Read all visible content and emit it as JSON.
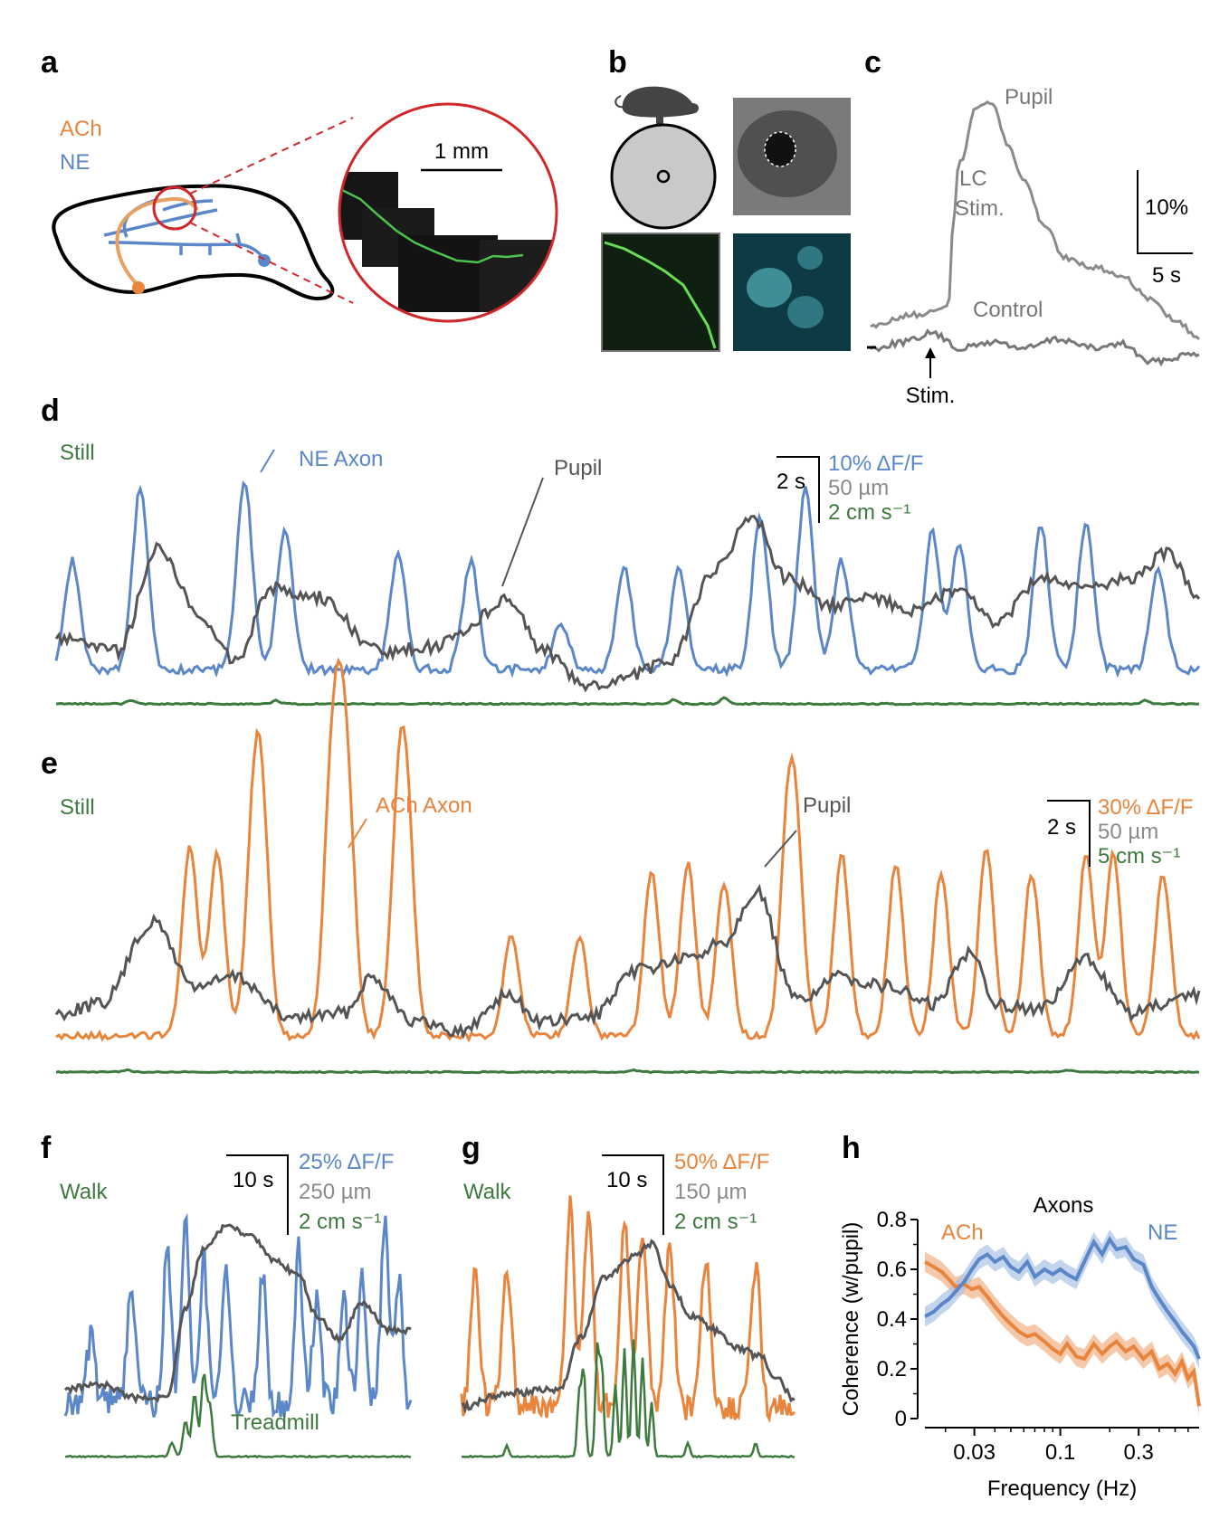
{
  "colors": {
    "ach": "#e8843c",
    "ne": "#5b87c9",
    "pupil": "#555555",
    "pupil_light": "#8a8a8a",
    "treadmill": "#3d7a3d",
    "axon_green": "#4cc44c",
    "brain_ring": "#d0282a"
  },
  "panels": {
    "a": {
      "label": "a",
      "legend_ach": "ACh",
      "legend_ne": "NE",
      "scale_bar": "1 mm"
    },
    "b": {
      "label": "b",
      "icons": [
        "mouse-icon",
        "treadmill-wheel",
        "eye-photo",
        "axon-photo",
        "cells-photo"
      ]
    },
    "c": {
      "label": "c",
      "pupil_label": "Pupil",
      "lc_label_1": "LC",
      "lc_label_2": "Stim.",
      "control_label": "Control",
      "stim_label": "Stim.",
      "scale_y": "10%",
      "scale_x": "5 s"
    },
    "d": {
      "label": "d",
      "state": "Still",
      "axon_label": "NE Axon",
      "pupil_label": "Pupil",
      "scale_time": "2 s",
      "scale_f": "10% ΔF/F",
      "scale_pupil": "50 µm",
      "scale_speed": "2 cm s⁻¹"
    },
    "e": {
      "label": "e",
      "state": "Still",
      "axon_label": "ACh Axon",
      "pupil_label": "Pupil",
      "scale_time": "2 s",
      "scale_f": "30% ΔF/F",
      "scale_pupil": "50 µm",
      "scale_speed": "5 cm s⁻¹"
    },
    "f": {
      "label": "f",
      "state": "Walk",
      "treadmill_label": "Treadmill",
      "scale_time": "10 s",
      "scale_f": "25% ΔF/F",
      "scale_pupil": "250 µm",
      "scale_speed": "2 cm s⁻¹"
    },
    "g": {
      "label": "g",
      "state": "Walk",
      "scale_time": "10 s",
      "scale_f": "50% ΔF/F",
      "scale_pupil": "150 µm",
      "scale_speed": "2 cm s⁻¹"
    },
    "h": {
      "label": "h",
      "title": "Axons",
      "legend_ach": "ACh",
      "legend_ne": "NE"
    }
  },
  "chart_data": [
    {
      "panel": "h",
      "type": "line",
      "title": "Axons",
      "xlabel": "Frequency (Hz)",
      "ylabel": "Coherence (w/pupil)",
      "xscale": "log",
      "xlim": [
        0.015,
        0.7
      ],
      "ylim": [
        0,
        0.8
      ],
      "xticks": [
        0.03,
        0.1,
        0.3
      ],
      "xtick_labels": [
        "0.03",
        "0.1",
        "0.3"
      ],
      "yticks": [
        0,
        0.2,
        0.4,
        0.6,
        0.8
      ],
      "ytick_labels": [
        "0",
        "0.2",
        "0.4",
        "0.6",
        "0.8"
      ],
      "series": [
        {
          "name": "ACh",
          "x": [
            0.015,
            0.017,
            0.019,
            0.021,
            0.023,
            0.026,
            0.029,
            0.032,
            0.036,
            0.04,
            0.045,
            0.05,
            0.056,
            0.063,
            0.07,
            0.08,
            0.09,
            0.1,
            0.11,
            0.125,
            0.14,
            0.16,
            0.18,
            0.2,
            0.22,
            0.25,
            0.28,
            0.32,
            0.36,
            0.4,
            0.45,
            0.5,
            0.55,
            0.6,
            0.65,
            0.7
          ],
          "y": [
            0.63,
            0.61,
            0.59,
            0.56,
            0.53,
            0.54,
            0.52,
            0.53,
            0.49,
            0.45,
            0.41,
            0.38,
            0.35,
            0.33,
            0.34,
            0.31,
            0.28,
            0.26,
            0.3,
            0.25,
            0.24,
            0.3,
            0.26,
            0.29,
            0.31,
            0.27,
            0.29,
            0.24,
            0.27,
            0.2,
            0.22,
            0.18,
            0.23,
            0.16,
            0.19,
            0.05
          ],
          "band": 0.04
        },
        {
          "name": "NE",
          "x": [
            0.015,
            0.017,
            0.019,
            0.021,
            0.023,
            0.026,
            0.029,
            0.032,
            0.036,
            0.04,
            0.045,
            0.05,
            0.056,
            0.063,
            0.07,
            0.08,
            0.09,
            0.1,
            0.11,
            0.125,
            0.14,
            0.16,
            0.18,
            0.2,
            0.22,
            0.25,
            0.28,
            0.32,
            0.36,
            0.4,
            0.45,
            0.5,
            0.55,
            0.6,
            0.65,
            0.7
          ],
          "y": [
            0.41,
            0.43,
            0.46,
            0.48,
            0.51,
            0.55,
            0.6,
            0.64,
            0.66,
            0.63,
            0.65,
            0.61,
            0.59,
            0.63,
            0.57,
            0.6,
            0.58,
            0.6,
            0.58,
            0.56,
            0.63,
            0.71,
            0.66,
            0.72,
            0.68,
            0.69,
            0.64,
            0.62,
            0.53,
            0.48,
            0.43,
            0.39,
            0.35,
            0.32,
            0.29,
            0.24
          ],
          "band": 0.04
        }
      ]
    }
  ]
}
